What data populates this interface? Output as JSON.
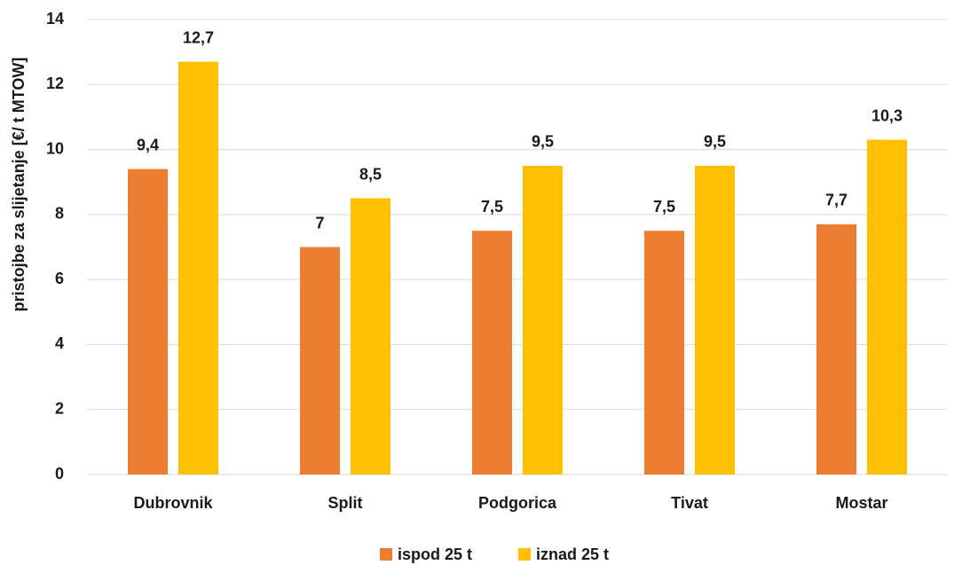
{
  "chart_data": {
    "type": "bar",
    "y_label": "pristojbe za slijetanje [€/ t MTOW]",
    "categories": [
      "Dubrovnik",
      "Split",
      "Podgorica",
      "Tivat",
      "Mostar"
    ],
    "series": [
      {
        "name": "ispod 25 t",
        "color": "#ed7d31",
        "values": [
          9.4,
          7,
          7.5,
          7.5,
          7.7
        ],
        "value_labels": [
          "9,4",
          "7",
          "7,5",
          "7,5",
          "7,7"
        ]
      },
      {
        "name": "iznad 25 t",
        "color": "#ffc000",
        "values": [
          12.7,
          8.5,
          9.5,
          9.5,
          10.3
        ],
        "value_labels": [
          "12,7",
          "8,5",
          "9,5",
          "9,5",
          "10,3"
        ]
      }
    ],
    "ylim": [
      0,
      14
    ],
    "yticks": [
      0,
      2,
      4,
      6,
      8,
      10,
      12,
      14
    ],
    "grid": true,
    "legend": "bottom"
  }
}
